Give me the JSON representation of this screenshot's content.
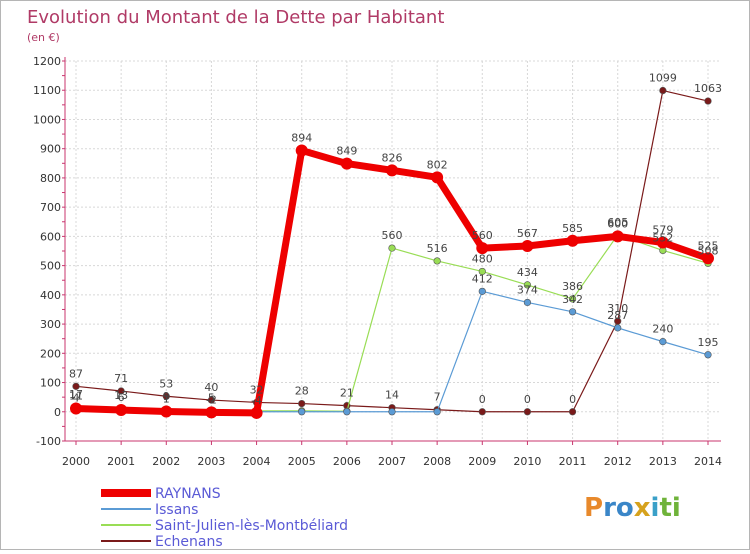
{
  "chart_data": {
    "type": "line",
    "title": "Evolution du Montant de la Dette par Habitant",
    "unit": "(en €)",
    "categories": [
      "2000",
      "2001",
      "2002",
      "2003",
      "2004",
      "2005",
      "2006",
      "2007",
      "2008",
      "2009",
      "2010",
      "2011",
      "2012",
      "2013",
      "2014"
    ],
    "ylim": [
      -100,
      1200
    ],
    "yticks": [
      -100,
      0,
      100,
      200,
      300,
      400,
      500,
      600,
      700,
      800,
      900,
      1000,
      1100,
      1200
    ],
    "grid": true,
    "legend_position": "bottom-left",
    "series": [
      {
        "name": "RAYNANS",
        "color": "#ee0000",
        "values": [
          11,
          6,
          1,
          -2,
          -4,
          894,
          849,
          826,
          802,
          560,
          567,
          585,
          600,
          579,
          525
        ]
      },
      {
        "name": "Issans",
        "color": "#5b9bd5",
        "values": [
          4,
          3,
          2,
          1,
          0,
          0,
          0,
          0,
          0,
          412,
          374,
          342,
          287,
          240,
          195
        ]
      },
      {
        "name": "Saint-Julien-lès-Montbéliard",
        "color": "#99dd55",
        "values": [
          17,
          13,
          9,
          5,
          3,
          3,
          2,
          560,
          516,
          480,
          434,
          386,
          605,
          552,
          508
        ]
      },
      {
        "name": "Echenans",
        "color": "#7a1a1a",
        "values": [
          87,
          71,
          53,
          40,
          32,
          28,
          21,
          14,
          7,
          0,
          0,
          0,
          310,
          1099,
          1063
        ]
      }
    ],
    "point_labels": [
      {
        "series": 0,
        "texts": [
          "11",
          "6",
          "1",
          "-2",
          "-4",
          "894",
          "849",
          "826",
          "802",
          "560",
          "567",
          "585",
          "600",
          "579",
          "525"
        ]
      },
      {
        "series": 1,
        "texts": [
          "4",
          "",
          "",
          "",
          "",
          "",
          "",
          "",
          "",
          "412",
          "374",
          "342",
          "287",
          "240",
          "195"
        ]
      },
      {
        "series": 2,
        "texts": [
          "17",
          "13",
          "9",
          "5",
          "",
          "",
          "",
          "560",
          "516",
          "480",
          "434",
          "386",
          "605",
          "552",
          "508"
        ]
      },
      {
        "series": 3,
        "texts": [
          "87",
          "71",
          "53",
          "40",
          "32",
          "28",
          "21",
          "14",
          "7",
          "0",
          "0",
          "0",
          "310",
          "1099",
          "1063"
        ]
      }
    ]
  },
  "logo": {
    "text": "Proxiti"
  }
}
